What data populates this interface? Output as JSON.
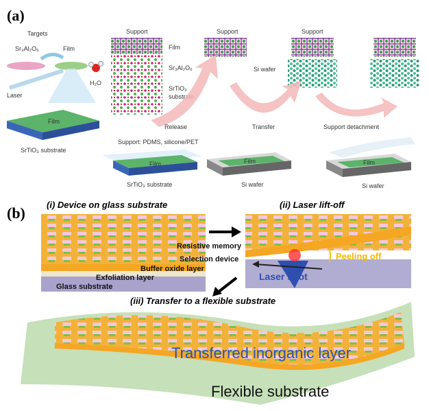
{
  "panel_a": {
    "label": "(a)",
    "targets": "Targets",
    "target_sao": "Sr₃Al₂O₆",
    "target_film": "Film",
    "laser": "Laser",
    "slab_film": "Film",
    "slab_substrate": "SrTiO₃ substrate",
    "water": "H₂O",
    "stack": {
      "support": "Support",
      "film": "Film",
      "sacrificial": "Sr₃Al₂O₆",
      "substrate_1": "SrTiO₃",
      "substrate_2": "substrate"
    },
    "supports": [
      "Support",
      "Support",
      "Support"
    ],
    "si_wafer": "Si wafer",
    "steps": [
      "Release",
      "Transfer",
      "Support detachment"
    ],
    "support_note": "Support: PDMS, silicone/PET",
    "bottom_films": [
      "Film",
      "Film",
      "Film"
    ],
    "bottom_labels": [
      "SrTiO₃ substrate",
      "Si wafer",
      "Si wafer"
    ]
  },
  "panel_b": {
    "label": "(b)",
    "step_i": "(i) Device on glass substrate",
    "step_ii": "(ii) Laser lift-off",
    "layers": [
      "Resistive memory",
      "Selection device",
      "Buffer oxide layer",
      "Exfoliation layer",
      "Glass substrate"
    ],
    "peeling": "Peeling off",
    "laser_shot": "Laser shot",
    "step_iii": "(iii) Transfer to a flexible substrate",
    "transferred": "Transferred inorganic layer",
    "flexible": "Flexible substrate"
  }
}
